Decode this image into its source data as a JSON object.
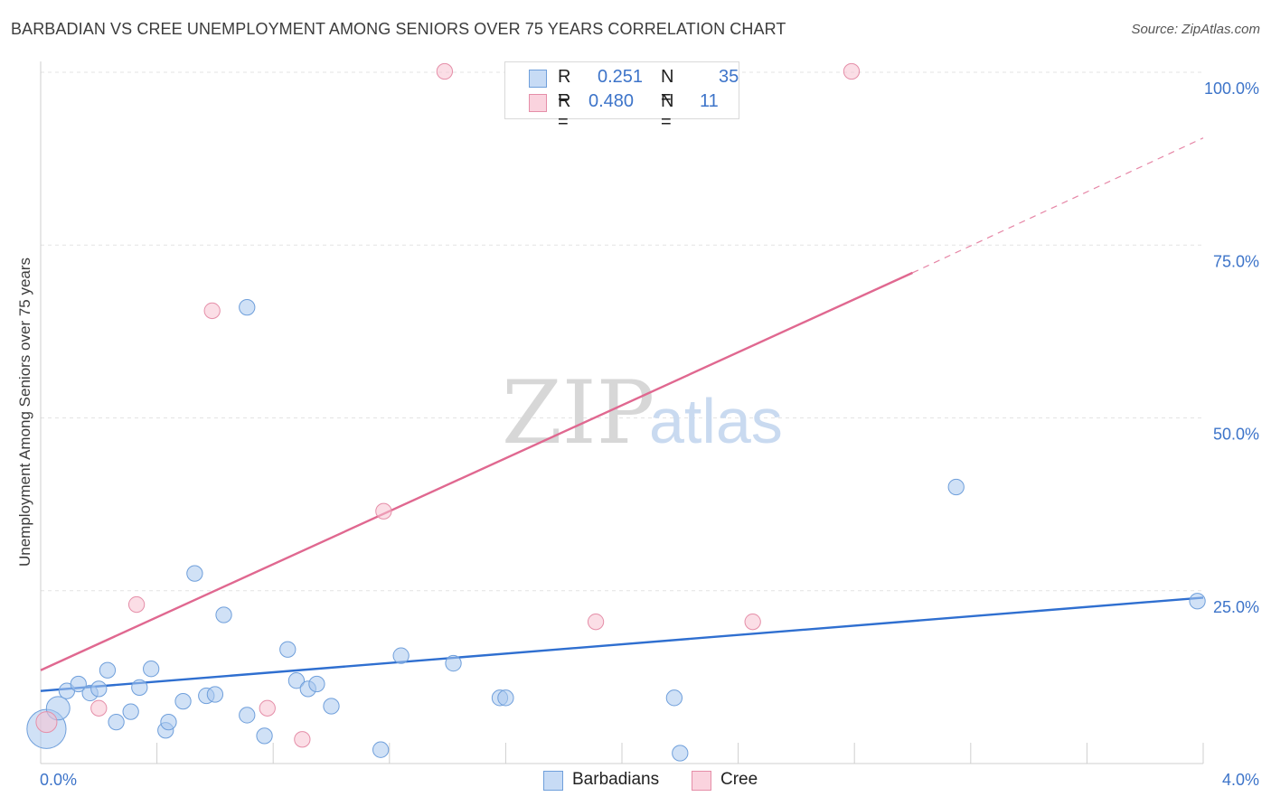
{
  "header": {
    "title": "BARBADIAN VS CREE UNEMPLOYMENT AMONG SENIORS OVER 75 YEARS CORRELATION CHART",
    "source": "Source: ZipAtlas.com"
  },
  "watermark": {
    "zip": "ZIP",
    "atlas": "atlas"
  },
  "legend": {
    "r_label": "R =",
    "n_label": "N =",
    "rows": [
      {
        "r": "0.251",
        "n": "35",
        "color": "#a9c8ef",
        "border": "#6f9fdb"
      },
      {
        "r": "0.480",
        "n": "11",
        "color": "#f7c3d1",
        "border": "#e58ea8"
      }
    ]
  },
  "bottom_legend": [
    "Barbadians",
    "Cree"
  ],
  "chart_data": {
    "type": "scatter",
    "title": "BARBADIAN VS CREE UNEMPLOYMENT AMONG SENIORS OVER 75 YEARS CORRELATION CHART",
    "xlabel": "",
    "ylabel": "Unemployment Among Seniors over 75 years",
    "xlim": [
      0,
      4.0
    ],
    "ylim": [
      0,
      100
    ],
    "x_tick_labels": [
      "0.0%",
      "4.0%"
    ],
    "y_tick_labels": [
      "100.0%",
      "75.0%",
      "50.0%",
      "25.0%"
    ],
    "y_ticks": [
      100,
      75,
      50,
      25
    ],
    "series": [
      {
        "name": "Barbadians",
        "color": "#6f9fdb",
        "fill": "#a9c8ef",
        "trend": {
          "x0": 0.0,
          "y0": 10.5,
          "x1": 4.0,
          "y1": 24.0,
          "color": "#2f6fd0"
        },
        "points": [
          [
            0.02,
            5.0,
            30
          ],
          [
            0.06,
            8.0,
            18
          ],
          [
            0.09,
            10.5,
            12
          ],
          [
            0.13,
            11.5,
            12
          ],
          [
            0.17,
            10.2,
            12
          ],
          [
            0.2,
            10.8,
            12
          ],
          [
            0.23,
            13.5,
            12
          ],
          [
            0.26,
            6.0,
            12
          ],
          [
            0.31,
            7.5,
            12
          ],
          [
            0.34,
            11.0,
            12
          ],
          [
            0.38,
            13.7,
            12
          ],
          [
            0.43,
            4.8,
            12
          ],
          [
            0.44,
            6.0,
            12
          ],
          [
            0.49,
            9.0,
            12
          ],
          [
            0.53,
            27.5,
            12
          ],
          [
            0.57,
            9.8,
            12
          ],
          [
            0.6,
            10.0,
            12
          ],
          [
            0.63,
            21.5,
            12
          ],
          [
            0.71,
            66.0,
            12
          ],
          [
            0.71,
            7.0,
            12
          ],
          [
            0.77,
            4.0,
            12
          ],
          [
            0.85,
            16.5,
            12
          ],
          [
            0.88,
            12.0,
            12
          ],
          [
            0.92,
            10.8,
            12
          ],
          [
            0.95,
            11.5,
            12
          ],
          [
            1.0,
            8.3,
            12
          ],
          [
            1.17,
            2.0,
            12
          ],
          [
            1.24,
            15.6,
            12
          ],
          [
            1.42,
            14.5,
            12
          ],
          [
            1.58,
            9.5,
            12
          ],
          [
            1.6,
            9.5,
            12
          ],
          [
            2.18,
            9.5,
            12
          ],
          [
            2.2,
            1.5,
            12
          ],
          [
            3.15,
            40.0,
            12
          ],
          [
            3.98,
            23.5,
            12
          ]
        ]
      },
      {
        "name": "Cree",
        "color": "#e58ea8",
        "fill": "#f7c3d1",
        "trend": {
          "x0": 0.0,
          "y0": 13.5,
          "x1": 3.0,
          "y1": 71.0,
          "dash_to_x": 4.0,
          "dash_to_y": 90.5,
          "color": "#e06890"
        },
        "points": [
          [
            0.02,
            6.0,
            16
          ],
          [
            0.2,
            8.0,
            12
          ],
          [
            0.33,
            23.0,
            12
          ],
          [
            0.59,
            65.5,
            12
          ],
          [
            0.78,
            8.0,
            12
          ],
          [
            0.9,
            3.5,
            12
          ],
          [
            1.18,
            36.5,
            12
          ],
          [
            1.39,
            103.5,
            12
          ],
          [
            1.91,
            20.5,
            12
          ],
          [
            2.45,
            20.5,
            12
          ],
          [
            2.79,
            103.5,
            12
          ]
        ]
      }
    ]
  }
}
